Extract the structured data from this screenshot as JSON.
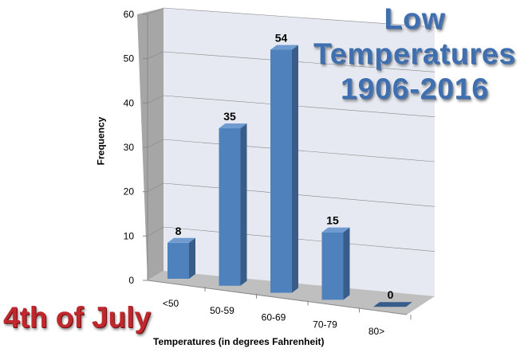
{
  "chart_data": {
    "type": "bar",
    "title": "Low Temperatures 1906-2016",
    "title_lines": [
      "Low",
      "Temperatures",
      "1906-2016"
    ],
    "subtitle": "4th of July",
    "xlabel": "Temperatures (in degrees Fahrenheit)",
    "ylabel": "Frequency",
    "categories": [
      "<50",
      "50-59",
      "60-69",
      "70-79",
      "80>"
    ],
    "values": [
      8,
      35,
      54,
      15,
      0
    ],
    "ylim": [
      0,
      60
    ],
    "yticks": [
      "0",
      "10",
      "20",
      "30",
      "40",
      "50",
      "60"
    ],
    "grid": true,
    "legend": "none",
    "colors": {
      "bar": "#4f81bd",
      "bar_side": "#385d8a",
      "bar_top": "#6f9bd1",
      "wall": "#e6e9f2",
      "side_wall": "#a6a6a6",
      "floor": "#bfbfbf",
      "title": "#3f6fae",
      "subtitle": "#c0282d"
    }
  }
}
